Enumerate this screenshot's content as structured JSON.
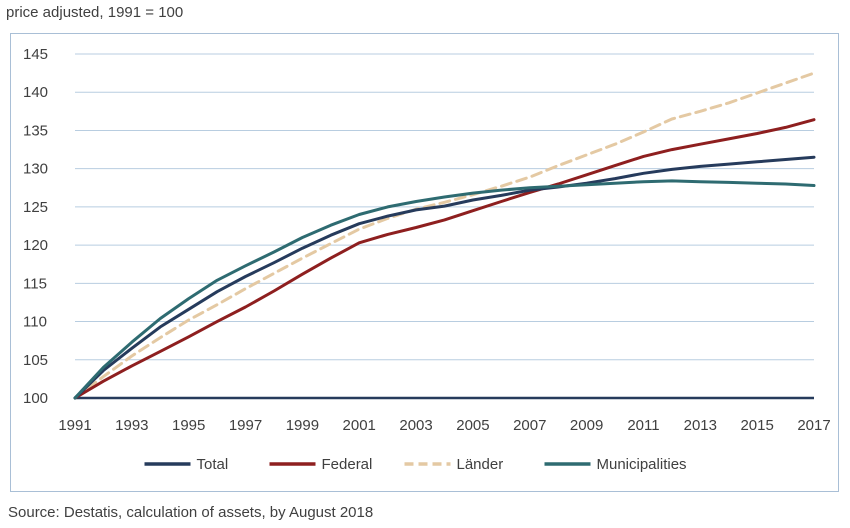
{
  "header": {
    "subtitle": "price adjusted, 1991 = 100"
  },
  "footer": {
    "source": "Source: Destatis, calculation of assets, by August 2018"
  },
  "chart_data": {
    "type": "line",
    "subtitle": "price adjusted, 1991 = 100",
    "x": [
      1991,
      1992,
      1993,
      1994,
      1995,
      1996,
      1997,
      1998,
      1999,
      2000,
      2001,
      2002,
      2003,
      2004,
      2005,
      2006,
      2007,
      2008,
      2009,
      2010,
      2011,
      2012,
      2013,
      2014,
      2015,
      2016,
      2017
    ],
    "x_ticks": [
      "1991",
      "1993",
      "1995",
      "1997",
      "1999",
      "2001",
      "2003",
      "2005",
      "2007",
      "2009",
      "2011",
      "2013",
      "2015",
      "2017"
    ],
    "ylim": [
      100,
      145
    ],
    "y_ticks": [
      "100",
      "105",
      "110",
      "115",
      "120",
      "125",
      "130",
      "135",
      "140",
      "145"
    ],
    "grid": true,
    "legend_position": "bottom",
    "series": [
      {
        "name": "Total",
        "color": "#263B5C",
        "dash": "solid",
        "values": [
          100,
          103.6,
          106.5,
          109.3,
          111.6,
          113.9,
          115.9,
          117.7,
          119.6,
          121.3,
          122.8,
          123.8,
          124.6,
          125.1,
          125.9,
          126.5,
          127.2,
          127.6,
          128.1,
          128.7,
          129.4,
          129.9,
          130.3,
          130.6,
          130.9,
          131.2,
          131.5
        ]
      },
      {
        "name": "Federal",
        "color": "#8E1F1F",
        "dash": "solid",
        "values": [
          100,
          102.2,
          104.2,
          106.1,
          108.0,
          110.0,
          111.9,
          114.0,
          116.2,
          118.3,
          120.3,
          121.4,
          122.3,
          123.3,
          124.5,
          125.7,
          126.9,
          128.0,
          129.2,
          130.4,
          131.6,
          132.5,
          133.2,
          133.9,
          134.6,
          135.4,
          136.4
        ]
      },
      {
        "name": "Länder",
        "color": "#E4C9A3",
        "dash": "dashed",
        "values": [
          100,
          102.8,
          105.5,
          107.9,
          110.2,
          112.2,
          114.3,
          116.3,
          118.3,
          120.2,
          122.1,
          123.5,
          124.7,
          125.6,
          126.6,
          127.7,
          128.9,
          130.4,
          131.8,
          133.2,
          134.8,
          136.5,
          137.5,
          138.6,
          139.9,
          141.2,
          142.5
        ]
      },
      {
        "name": "Municipalities",
        "color": "#2E6B71",
        "dash": "solid",
        "values": [
          100,
          104.0,
          107.3,
          110.4,
          113.0,
          115.4,
          117.3,
          119.1,
          121.0,
          122.6,
          124.0,
          125.0,
          125.7,
          126.3,
          126.8,
          127.2,
          127.5,
          127.7,
          127.9,
          128.1,
          128.3,
          128.4,
          128.3,
          128.2,
          128.1,
          128.0,
          127.8
        ]
      }
    ]
  }
}
